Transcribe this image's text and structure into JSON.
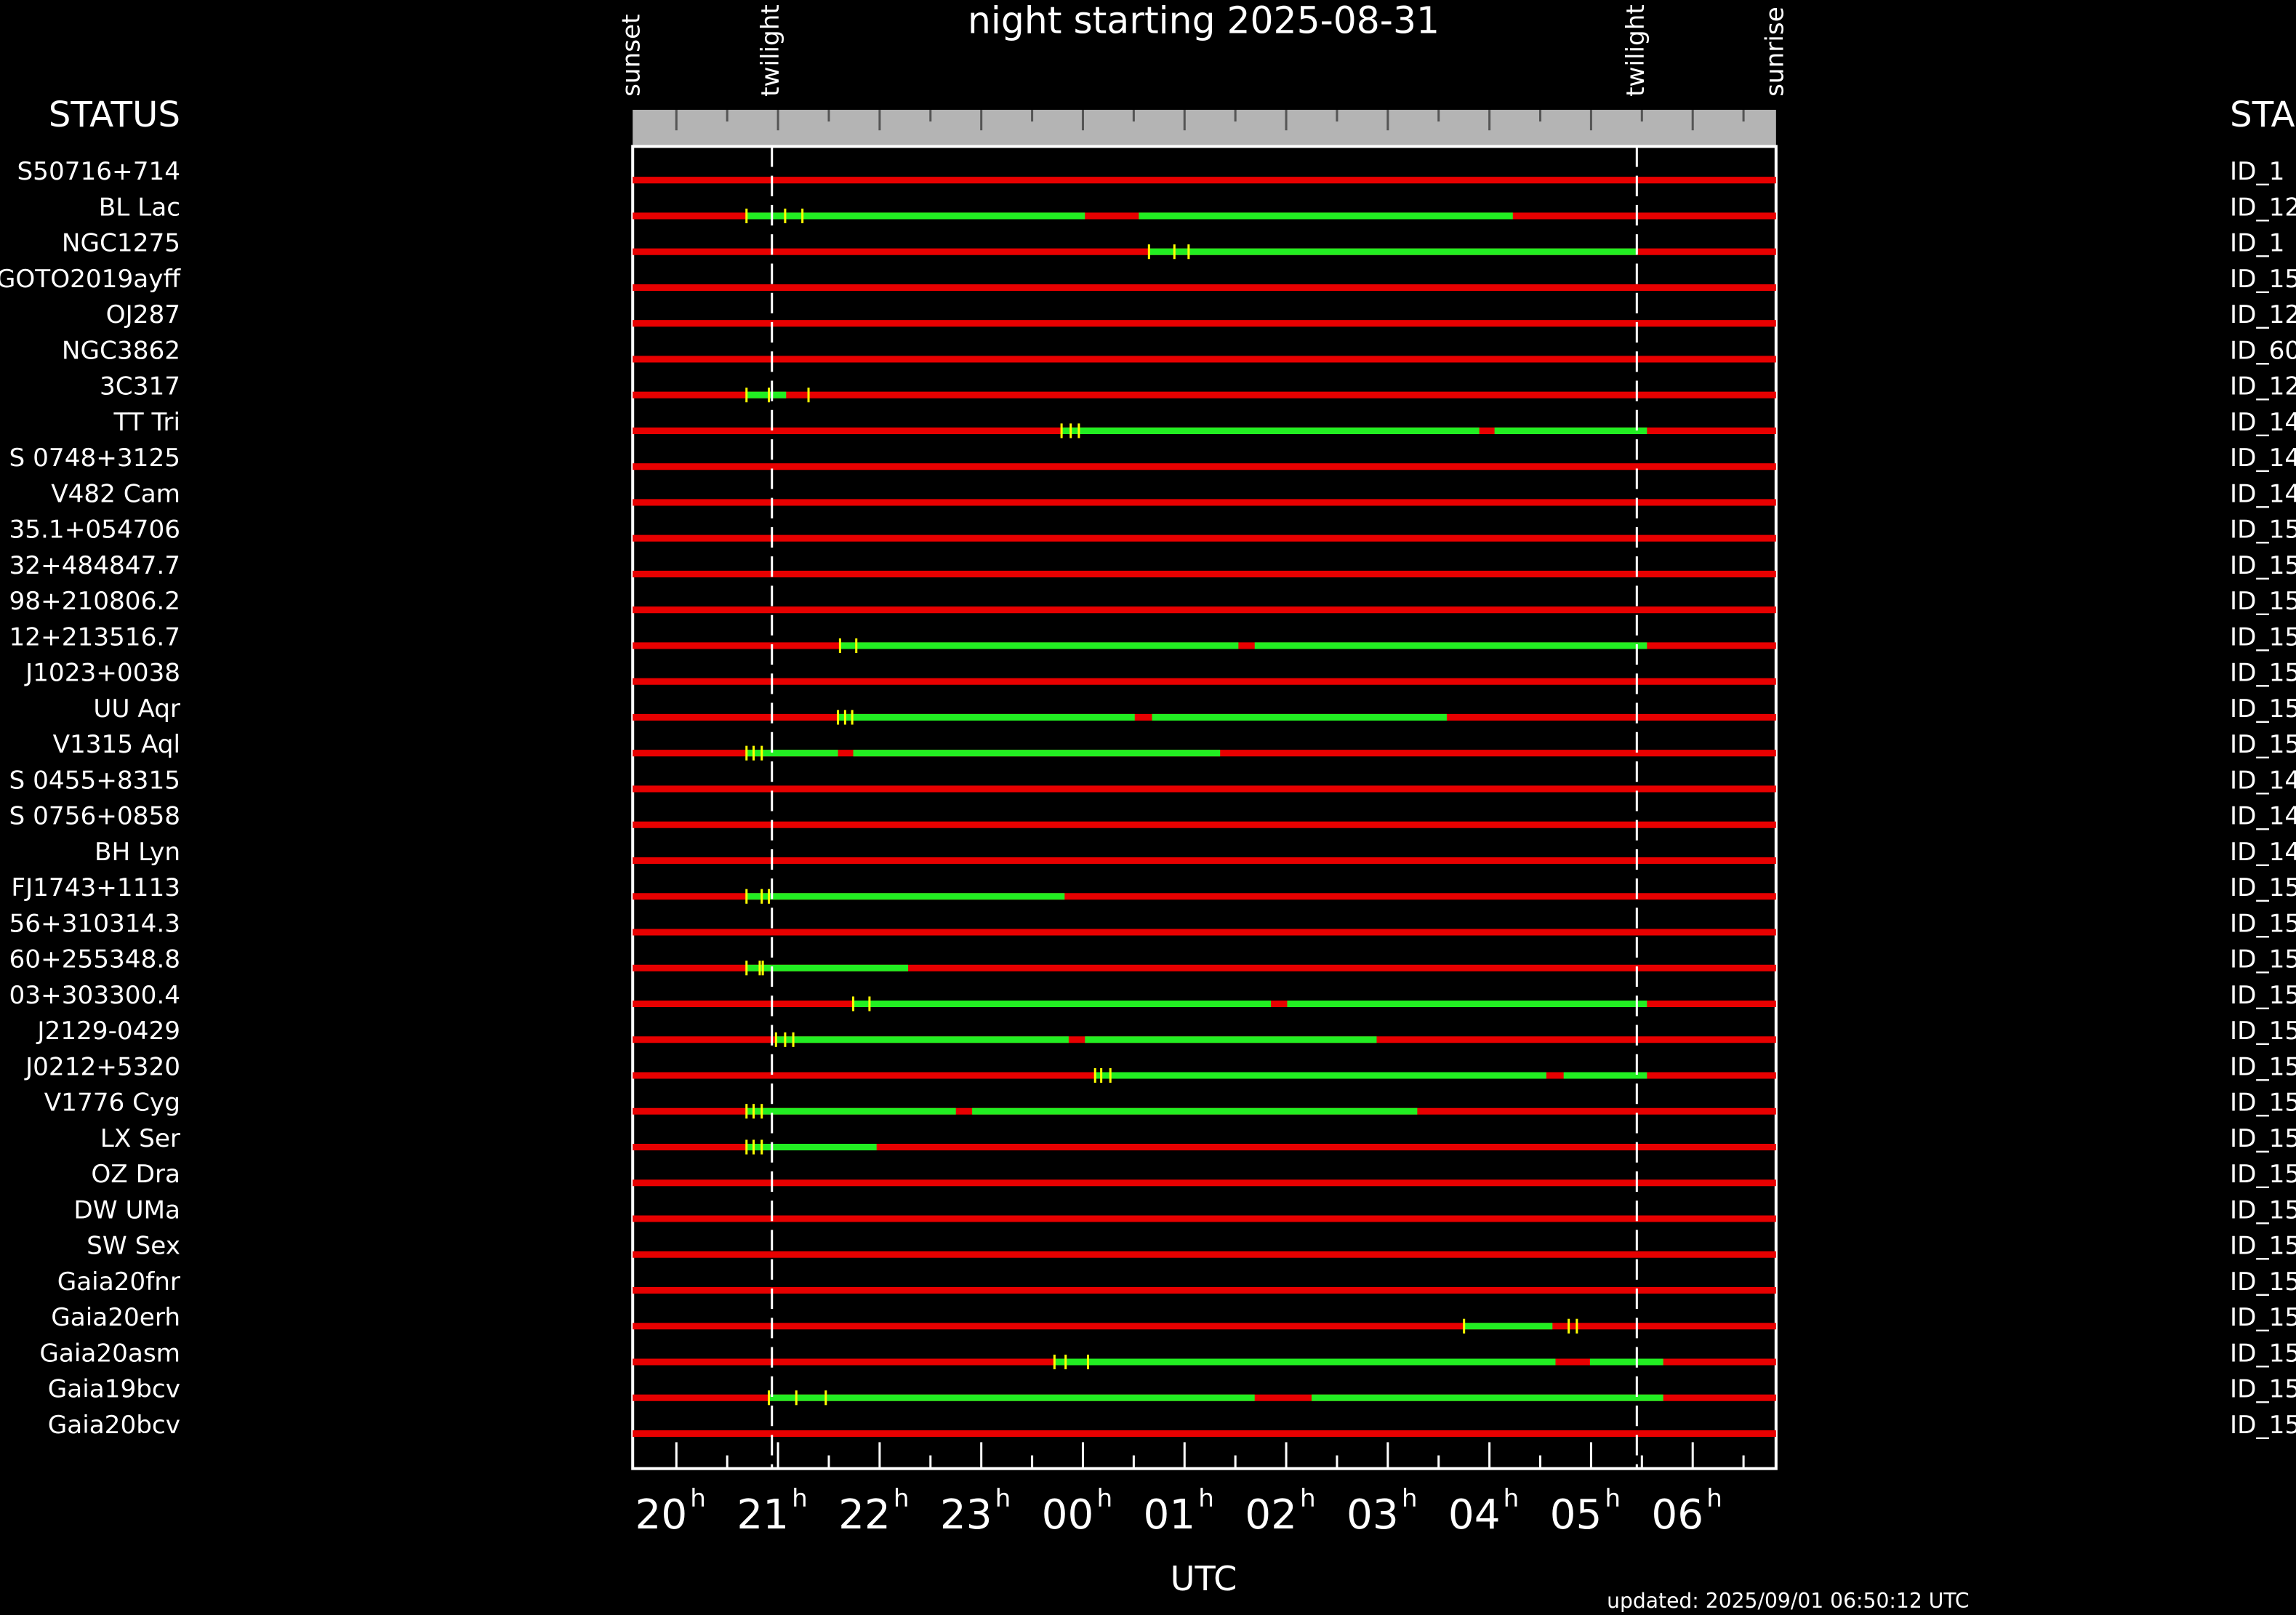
{
  "chart_data": {
    "type": "timeline",
    "title": "night starting 2025-08-31",
    "xlabel": "UTC",
    "left_header": "STATUS",
    "right_header": "STA",
    "updated": "updated: 2025/09/01 06:50:12 UTC",
    "xlim": [
      19.57,
      30.82
    ],
    "xticks": [
      20,
      21,
      22,
      23,
      {
        "value": 24,
        "label": "00"
      },
      {
        "value": 25,
        "label": "01"
      },
      {
        "value": 26,
        "label": "02"
      },
      {
        "value": 27,
        "label": "03"
      },
      {
        "value": 28,
        "label": "04"
      },
      {
        "value": 29,
        "label": "05"
      },
      {
        "value": 30,
        "label": "06"
      }
    ],
    "tick_suffix": "h",
    "minor_xticks": [
      20.5,
      21.5,
      22.5,
      23.5,
      24.5,
      25.5,
      26.5,
      27.5,
      28.5,
      29.5,
      30.5
    ],
    "markers": [
      {
        "label": "sunset",
        "x": 19.57
      },
      {
        "label": "twilight",
        "x": 20.94,
        "dashed": true
      },
      {
        "label": "twilight",
        "x": 29.45,
        "dashed": true
      },
      {
        "label": "sunrise",
        "x": 30.82
      }
    ],
    "colors": {
      "base": "#e80000",
      "visible": "#22ee22",
      "tick": "#ffff00"
    },
    "rows": [
      {
        "name": "S50716+714",
        "id": "ID_1",
        "segments": [],
        "ticks": []
      },
      {
        "name": "BL Lac",
        "id": "ID_12",
        "segments": [
          [
            20.69,
            24.02
          ],
          [
            24.55,
            28.23
          ]
        ],
        "ticks": [
          20.69,
          21.07,
          21.24
        ]
      },
      {
        "name": "NGC1275",
        "id": "ID_1",
        "segments": [
          [
            24.65,
            29.45
          ]
        ],
        "ticks": [
          24.65,
          24.9,
          25.04
        ]
      },
      {
        "name": "GOTO2019ayff",
        "id": "ID_15",
        "segments": [],
        "ticks": []
      },
      {
        "name": "OJ287",
        "id": "ID_12",
        "segments": [],
        "ticks": []
      },
      {
        "name": "NGC3862",
        "id": "ID_60",
        "segments": [],
        "ticks": []
      },
      {
        "name": "3C317",
        "id": "ID_12",
        "segments": [
          [
            20.69,
            21.08
          ]
        ],
        "ticks": [
          20.69,
          20.91,
          21.3
        ]
      },
      {
        "name": "TT Tri",
        "id": "ID_14",
        "segments": [
          [
            23.79,
            27.9
          ],
          [
            28.05,
            29.55
          ]
        ],
        "ticks": [
          23.79,
          23.88,
          23.96
        ]
      },
      {
        "name": "S 0748+3125",
        "id": "ID_14",
        "segments": [],
        "ticks": []
      },
      {
        "name": "V482 Cam",
        "id": "ID_14",
        "segments": [],
        "ticks": []
      },
      {
        "name": "35.1+054706",
        "id": "ID_15",
        "segments": [],
        "ticks": []
      },
      {
        "name": "32+484847.7",
        "id": "ID_15",
        "segments": [],
        "ticks": []
      },
      {
        "name": "98+210806.2",
        "id": "ID_15",
        "segments": [],
        "ticks": []
      },
      {
        "name": "12+213516.7",
        "id": "ID_15",
        "segments": [
          [
            21.61,
            25.53
          ],
          [
            25.69,
            29.55
          ]
        ],
        "ticks": [
          21.61,
          21.77
        ]
      },
      {
        "name": "J1023+0038",
        "id": "ID_15",
        "segments": [],
        "ticks": []
      },
      {
        "name": "UU Aqr",
        "id": "ID_15",
        "segments": [
          [
            21.59,
            24.51
          ],
          [
            24.68,
            27.58
          ]
        ],
        "ticks": [
          21.59,
          21.66,
          21.73
        ]
      },
      {
        "name": "V1315 Aql",
        "id": "ID_15",
        "segments": [
          [
            20.69,
            21.59
          ],
          [
            21.74,
            25.35
          ]
        ],
        "ticks": [
          20.69,
          20.76,
          20.84
        ]
      },
      {
        "name": "S 0455+8315",
        "id": "ID_14",
        "segments": [],
        "ticks": []
      },
      {
        "name": "S 0756+0858",
        "id": "ID_14",
        "segments": [],
        "ticks": []
      },
      {
        "name": "BH Lyn",
        "id": "ID_14",
        "segments": [],
        "ticks": []
      },
      {
        "name": "FJ1743+1113",
        "id": "ID_15",
        "segments": [
          [
            20.69,
            23.82
          ]
        ],
        "ticks": [
          20.69,
          20.84,
          20.91
        ]
      },
      {
        "name": "56+310314.3",
        "id": "ID_15",
        "segments": [],
        "ticks": []
      },
      {
        "name": "60+255348.8",
        "id": "ID_15",
        "segments": [
          [
            20.69,
            22.28
          ]
        ],
        "ticks": [
          20.69,
          20.82,
          20.85
        ]
      },
      {
        "name": "03+303300.4",
        "id": "ID_15",
        "segments": [
          [
            21.74,
            25.85
          ],
          [
            26.01,
            29.55
          ]
        ],
        "ticks": [
          21.74,
          21.9
        ]
      },
      {
        "name": "J2129-0429",
        "id": "ID_15",
        "segments": [
          [
            20.98,
            23.86
          ],
          [
            24.02,
            26.89
          ]
        ],
        "ticks": [
          20.98,
          21.07,
          21.15
        ]
      },
      {
        "name": "J0212+5320",
        "id": "ID_15",
        "segments": [
          [
            24.12,
            28.56
          ],
          [
            28.73,
            29.55
          ]
        ],
        "ticks": [
          24.12,
          24.18,
          24.27
        ]
      },
      {
        "name": "V1776 Cyg",
        "id": "ID_15",
        "segments": [
          [
            20.69,
            22.75
          ],
          [
            22.91,
            27.29
          ]
        ],
        "ticks": [
          20.69,
          20.76,
          20.84
        ]
      },
      {
        "name": "LX Ser",
        "id": "ID_15",
        "segments": [
          [
            20.69,
            21.97
          ]
        ],
        "ticks": [
          20.69,
          20.76,
          20.84
        ]
      },
      {
        "name": "OZ Dra",
        "id": "ID_15",
        "segments": [],
        "ticks": []
      },
      {
        "name": "DW UMa",
        "id": "ID_15",
        "segments": [],
        "ticks": []
      },
      {
        "name": "SW Sex",
        "id": "ID_15",
        "segments": [],
        "ticks": []
      },
      {
        "name": "Gaia20fnr",
        "id": "ID_15",
        "segments": [],
        "ticks": []
      },
      {
        "name": "Gaia20erh",
        "id": "ID_15",
        "segments": [
          [
            27.75,
            28.62
          ]
        ],
        "ticks": [
          27.75,
          28.78,
          28.86
        ]
      },
      {
        "name": "Gaia20asm",
        "id": "ID_15",
        "segments": [
          [
            23.72,
            28.65
          ],
          [
            28.99,
            29.71
          ]
        ],
        "ticks": [
          23.72,
          23.83,
          24.05
        ]
      },
      {
        "name": "Gaia19bcv",
        "id": "ID_15",
        "segments": [
          [
            20.91,
            25.69
          ],
          [
            26.25,
            29.71
          ]
        ],
        "ticks": [
          20.91,
          21.18,
          21.47
        ]
      },
      {
        "name": "Gaia20bcv",
        "id": "ID_15",
        "segments": [],
        "ticks": []
      }
    ]
  }
}
